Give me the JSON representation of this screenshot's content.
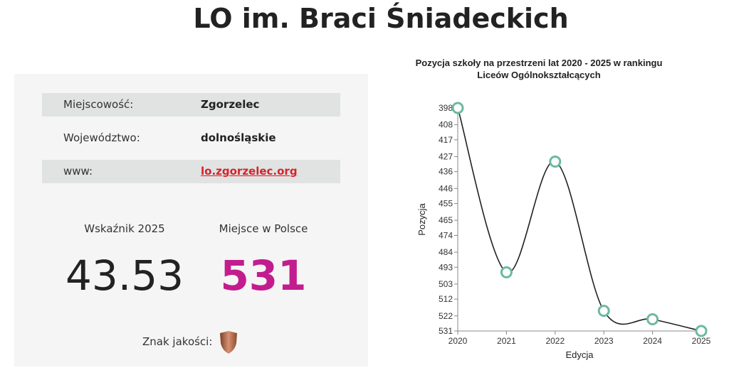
{
  "page_title": "LO im. Braci Śniadeckich",
  "info": [
    {
      "label": "Miejscowość:",
      "value": "Zgorzelec"
    },
    {
      "label": "Województwo:",
      "value": "dolnośląskie"
    },
    {
      "label": "www:",
      "value": "lo.zgorzelec.org"
    }
  ],
  "stats": {
    "index_label": "Wskaźnik 2025",
    "index_value": "43.53",
    "rank_label": "Miejsce w Polsce",
    "rank_value": "531",
    "rank_color": "#c21d8e"
  },
  "quality": {
    "label": "Znak jakości:",
    "icon": "bronze-shield-icon"
  },
  "chart_data": {
    "type": "line",
    "title": [
      "Pozycja szkoły na przestrzeni lat 2020 - 2025 w rankingu",
      "Liceów Ogólnokształcących"
    ],
    "xlabel": "Edycja",
    "ylabel": "Pozycja",
    "x": [
      "2020",
      "2021",
      "2022",
      "2023",
      "2024",
      "2025"
    ],
    "values": [
      398,
      496,
      430,
      519,
      524,
      531
    ],
    "ylim": [
      398,
      531
    ],
    "y_inverted": true,
    "yticks": [
      "398",
      "408",
      "417",
      "427",
      "436",
      "446",
      "455",
      "465",
      "474",
      "484",
      "493",
      "503",
      "512",
      "522",
      "531"
    ],
    "marker_color": "#6cb9a2"
  }
}
